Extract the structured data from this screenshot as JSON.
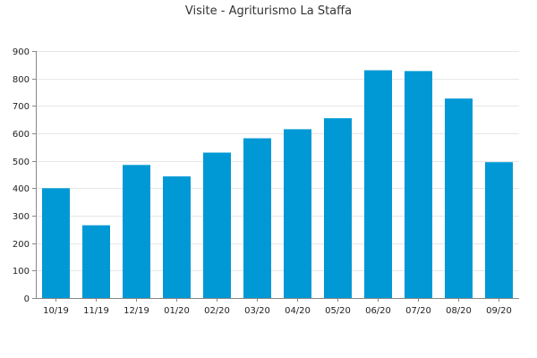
{
  "chart_data": {
    "type": "bar",
    "title": "Visite - Agriturismo La Staffa",
    "xlabel": "",
    "ylabel": "",
    "categories": [
      "10/19",
      "11/19",
      "12/19",
      "01/20",
      "02/20",
      "03/20",
      "04/20",
      "05/20",
      "06/20",
      "07/20",
      "08/20",
      "09/20"
    ],
    "values": [
      400,
      265,
      485,
      443,
      530,
      582,
      615,
      655,
      830,
      827,
      727,
      495
    ],
    "ylim": [
      0,
      900
    ],
    "yticks": [
      0,
      100,
      200,
      300,
      400,
      500,
      600,
      700,
      800,
      900
    ],
    "grid": true,
    "legend": "none",
    "colors": {
      "bar": "#0099d5"
    }
  }
}
